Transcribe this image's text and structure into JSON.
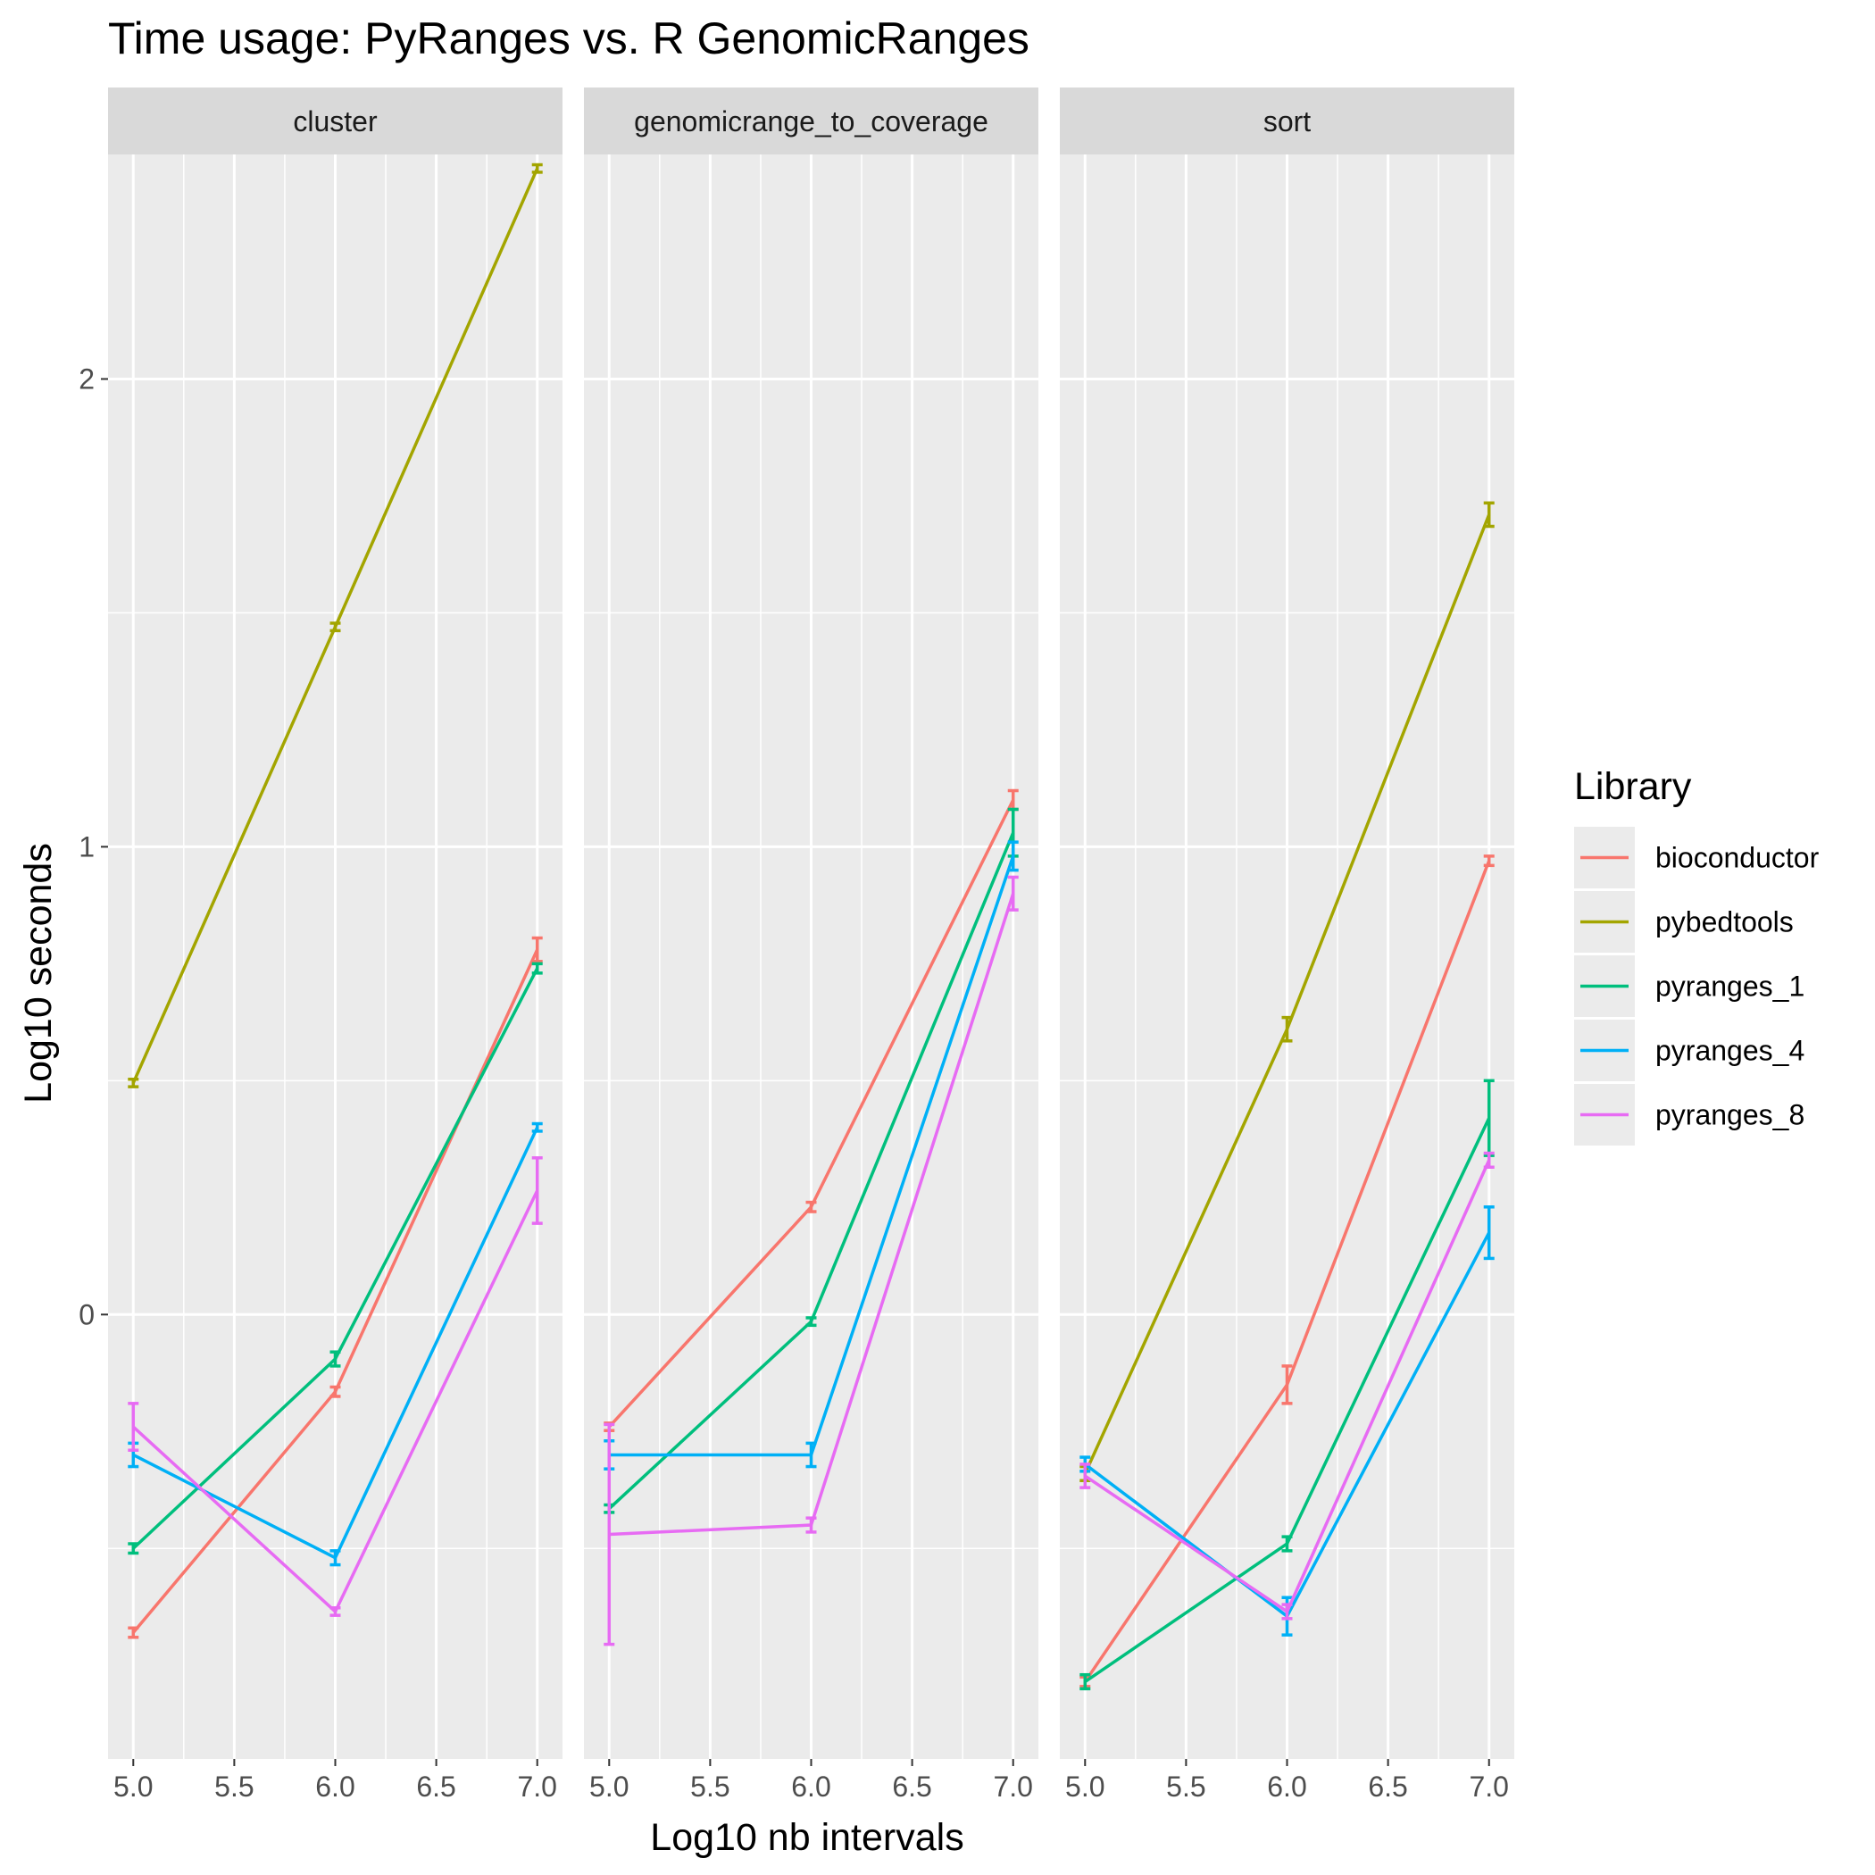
{
  "chart_data": {
    "type": "line",
    "title": "Time usage: PyRanges vs. R GenomicRanges",
    "xlabel": "Log10 nb intervals",
    "ylabel": "Log10 seconds",
    "xlim": [
      4.875,
      7.125
    ],
    "ylim": [
      -0.95,
      2.48
    ],
    "x_ticks": [
      "5.0",
      "5.5",
      "6.0",
      "6.5",
      "7.0"
    ],
    "x_tick_values": [
      5.0,
      5.5,
      6.0,
      6.5,
      7.0
    ],
    "y_ticks": [
      "0",
      "1",
      "2"
    ],
    "y_tick_values": [
      0,
      1,
      2
    ],
    "grid": true,
    "legend_title": "Library",
    "legend_position": "right",
    "x": [
      5.0,
      6.0,
      7.0
    ],
    "panels": [
      {
        "name": "cluster",
        "series": [
          {
            "name": "bioconductor",
            "color": "#F8766D",
            "y": [
              -0.68,
              -0.165,
              0.78
            ],
            "err": [
              0.01,
              0.01,
              0.025
            ]
          },
          {
            "name": "pybedtools",
            "color": "#A3A500",
            "y": [
              0.495,
              1.47,
              2.45
            ],
            "err": [
              0.008,
              0.008,
              0.008
            ]
          },
          {
            "name": "pyranges_1",
            "color": "#00BF7D",
            "y": [
              -0.5,
              -0.095,
              0.74
            ],
            "err": [
              0.01,
              0.015,
              0.01
            ]
          },
          {
            "name": "pyranges_4",
            "color": "#00B0F6",
            "y": [
              -0.3,
              -0.52,
              0.4
            ],
            "err": [
              0.025,
              0.015,
              0.008
            ]
          },
          {
            "name": "pyranges_8",
            "color": "#E76BF3",
            "y": [
              -0.24,
              -0.635,
              0.265
            ],
            "err": [
              0.05,
              0.008,
              0.07
            ]
          }
        ]
      },
      {
        "name": "genomicrange_to_coverage",
        "series": [
          {
            "name": "bioconductor",
            "color": "#F8766D",
            "y": [
              -0.24,
              0.23,
              1.1
            ],
            "err": [
              0.008,
              0.01,
              0.02
            ]
          },
          {
            "name": "pybedtools",
            "color": "#A3A500",
            "y": [
              null,
              null,
              null
            ],
            "err": [
              0,
              0,
              0
            ]
          },
          {
            "name": "pyranges_1",
            "color": "#00BF7D",
            "y": [
              -0.415,
              -0.015,
              1.03
            ],
            "err": [
              0.008,
              0.008,
              0.05
            ]
          },
          {
            "name": "pyranges_4",
            "color": "#00B0F6",
            "y": [
              -0.3,
              -0.3,
              0.98
            ],
            "err": [
              0.03,
              0.025,
              0.03
            ]
          },
          {
            "name": "pyranges_8",
            "color": "#E76BF3",
            "y": [
              -0.47,
              -0.45,
              0.9
            ],
            "err": [
              0.235,
              0.015,
              0.035
            ]
          }
        ]
      },
      {
        "name": "sort",
        "series": [
          {
            "name": "bioconductor",
            "color": "#F8766D",
            "y": [
              -0.785,
              -0.15,
              0.97
            ],
            "err": [
              0.01,
              0.04,
              0.01
            ]
          },
          {
            "name": "pybedtools",
            "color": "#A3A500",
            "y": [
              -0.34,
              0.61,
              1.71
            ],
            "err": [
              0.015,
              0.025,
              0.025
            ]
          },
          {
            "name": "pyranges_1",
            "color": "#00BF7D",
            "y": [
              -0.785,
              -0.49,
              0.42
            ],
            "err": [
              0.015,
              0.015,
              0.08
            ]
          },
          {
            "name": "pyranges_4",
            "color": "#00B0F6",
            "y": [
              -0.32,
              -0.645,
              0.175
            ],
            "err": [
              0.015,
              0.04,
              0.055
            ]
          },
          {
            "name": "pyranges_8",
            "color": "#E76BF3",
            "y": [
              -0.345,
              -0.635,
              0.33
            ],
            "err": [
              0.025,
              0.015,
              0.015
            ]
          }
        ]
      }
    ]
  }
}
